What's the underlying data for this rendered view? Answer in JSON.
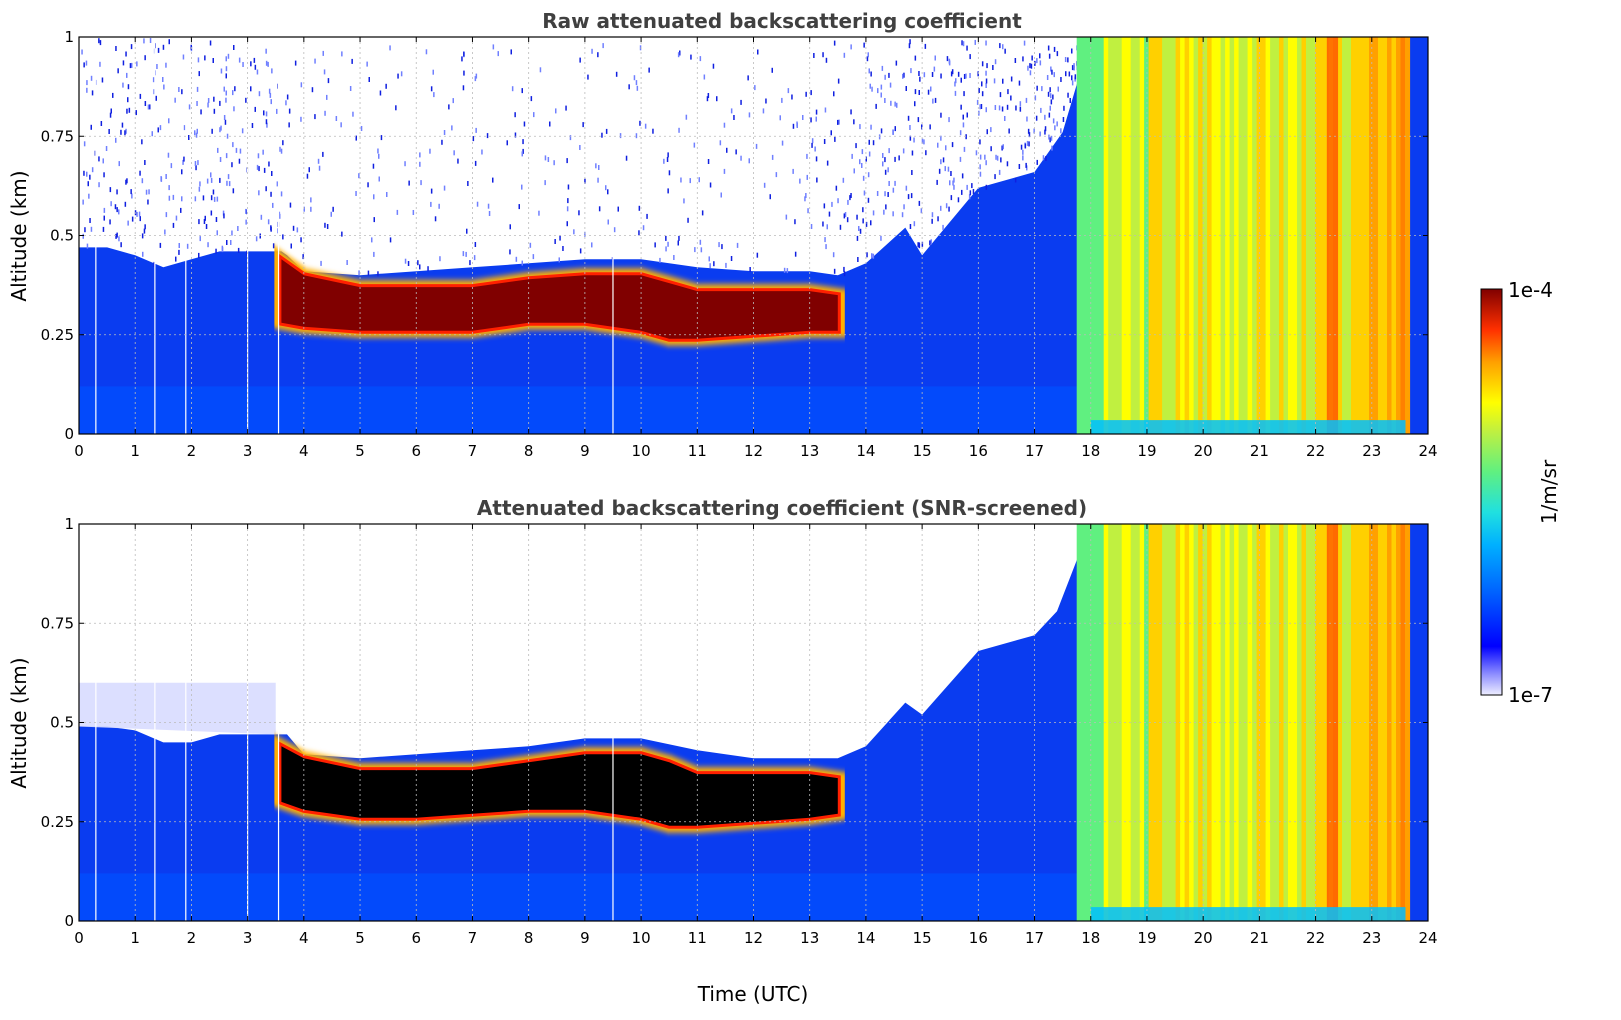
{
  "chart_data": [
    {
      "type": "heatmap",
      "title": "Raw attenuated backscattering coefficient",
      "xlabel": "",
      "ylabel": "Altitude (km)",
      "xlim": [
        0,
        24
      ],
      "ylim": [
        0,
        1
      ],
      "x_ticks": [
        "0",
        "1",
        "2",
        "3",
        "4",
        "5",
        "6",
        "7",
        "8",
        "9",
        "10",
        "11",
        "12",
        "13",
        "14",
        "15",
        "16",
        "17",
        "18",
        "19",
        "20",
        "21",
        "22",
        "23",
        "24"
      ],
      "y_ticks": [
        "0",
        "0.25",
        "0.5",
        "0.75",
        "1"
      ],
      "grid": true,
      "layer_top_km": [
        [
          0,
          0.47
        ],
        [
          0.5,
          0.47
        ],
        [
          1,
          0.45
        ],
        [
          1.5,
          0.42
        ],
        [
          2,
          0.44
        ],
        [
          2.5,
          0.46
        ],
        [
          3,
          0.46
        ],
        [
          3.6,
          0.46
        ],
        [
          3.7,
          0.45
        ],
        [
          4,
          0.41
        ],
        [
          5,
          0.4
        ],
        [
          6,
          0.41
        ],
        [
          7,
          0.42
        ],
        [
          8,
          0.43
        ],
        [
          9,
          0.44
        ],
        [
          10,
          0.44
        ],
        [
          11,
          0.42
        ],
        [
          12,
          0.41
        ],
        [
          13,
          0.41
        ],
        [
          13.5,
          0.4
        ],
        [
          14,
          0.43
        ],
        [
          14.7,
          0.52
        ],
        [
          15,
          0.45
        ],
        [
          16,
          0.62
        ],
        [
          17,
          0.66
        ],
        [
          17.5,
          0.76
        ],
        [
          18,
          1.0
        ],
        [
          24,
          1.0
        ]
      ],
      "dense_layer_km": [
        [
          3.6,
          0.44,
          0.28
        ],
        [
          4,
          0.4,
          0.27
        ],
        [
          5,
          0.37,
          0.26
        ],
        [
          6,
          0.37,
          0.26
        ],
        [
          7,
          0.37,
          0.26
        ],
        [
          8,
          0.39,
          0.28
        ],
        [
          9,
          0.4,
          0.28
        ],
        [
          10,
          0.4,
          0.26
        ],
        [
          10.5,
          0.38,
          0.24
        ],
        [
          11,
          0.36,
          0.24
        ],
        [
          12,
          0.36,
          0.25
        ],
        [
          13,
          0.36,
          0.26
        ],
        [
          13.5,
          0.35,
          0.26
        ]
      ],
      "missing_profiles_utc": [
        0.3,
        1.35,
        1.9,
        3.0,
        3.55,
        9.5
      ],
      "end_time_utc": 23.6
    },
    {
      "type": "heatmap",
      "title": "Attenuated backscattering coefficient (SNR-screened)",
      "xlabel": "Time (UTC)",
      "ylabel": "Altitude (km)",
      "xlim": [
        0,
        24
      ],
      "ylim": [
        0,
        1
      ],
      "x_ticks": [
        "0",
        "1",
        "2",
        "3",
        "4",
        "5",
        "6",
        "7",
        "8",
        "9",
        "10",
        "11",
        "12",
        "13",
        "14",
        "15",
        "16",
        "17",
        "18",
        "19",
        "20",
        "21",
        "22",
        "23",
        "24"
      ],
      "y_ticks": [
        "0",
        "0.25",
        "0.5",
        "0.75",
        "1"
      ],
      "grid": true,
      "layer_top_km": [
        [
          0,
          0.49
        ],
        [
          0.5,
          0.49
        ],
        [
          1,
          0.48
        ],
        [
          1.5,
          0.45
        ],
        [
          2,
          0.45
        ],
        [
          2.5,
          0.47
        ],
        [
          3,
          0.47
        ],
        [
          3.6,
          0.47
        ],
        [
          3.7,
          0.47
        ],
        [
          4,
          0.42
        ],
        [
          5,
          0.41
        ],
        [
          6,
          0.42
        ],
        [
          7,
          0.43
        ],
        [
          8,
          0.44
        ],
        [
          9,
          0.46
        ],
        [
          10,
          0.46
        ],
        [
          11,
          0.43
        ],
        [
          12,
          0.41
        ],
        [
          13,
          0.41
        ],
        [
          13.5,
          0.41
        ],
        [
          14,
          0.44
        ],
        [
          14.7,
          0.55
        ],
        [
          15,
          0.52
        ],
        [
          16,
          0.68
        ],
        [
          17,
          0.72
        ],
        [
          17.4,
          0.78
        ],
        [
          18,
          1.0
        ],
        [
          24,
          1.0
        ]
      ],
      "dense_layer_km": [
        [
          3.6,
          0.44,
          0.3
        ],
        [
          4,
          0.41,
          0.28
        ],
        [
          5,
          0.38,
          0.26
        ],
        [
          6,
          0.38,
          0.26
        ],
        [
          7,
          0.38,
          0.27
        ],
        [
          8,
          0.4,
          0.28
        ],
        [
          9,
          0.42,
          0.28
        ],
        [
          10,
          0.42,
          0.26
        ],
        [
          10.5,
          0.4,
          0.24
        ],
        [
          11,
          0.37,
          0.24
        ],
        [
          12,
          0.37,
          0.25
        ],
        [
          13,
          0.37,
          0.26
        ],
        [
          13.5,
          0.36,
          0.27
        ]
      ],
      "missing_profiles_utc": [
        0.3,
        1.35,
        1.9,
        3.0,
        3.55,
        9.5
      ],
      "end_time_utc": 23.6
    }
  ],
  "colorbar": {
    "label": "1/m/sr",
    "max_label": "1e-4",
    "min_label": "1e-7",
    "colormap": "jet",
    "scale": "log"
  },
  "colors": {
    "title": "#404040",
    "grid": "#bbbbbb",
    "screened_core": "#000000"
  }
}
